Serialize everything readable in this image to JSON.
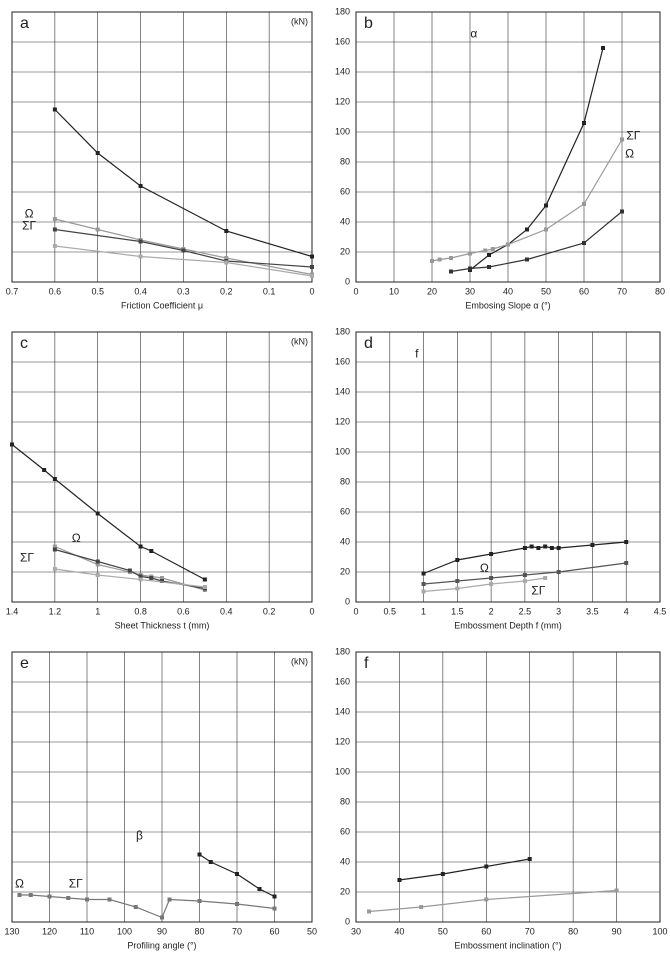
{
  "chart_data": [
    {
      "type": "line",
      "title": "a",
      "unit_label": "(kN)",
      "xlabel": "Friction Coefficient μ",
      "xlim": [
        0.7,
        0
      ],
      "xticks": [
        0.7,
        0.6,
        0.5,
        0.4,
        0.3,
        0.2,
        0.1,
        0
      ],
      "ylim": [
        0,
        180
      ],
      "grid": true,
      "series": [
        {
          "color": "#222222",
          "x": [
            0.6,
            0.5,
            0.4,
            0.2,
            0
          ],
          "values": [
            115,
            86,
            64,
            34,
            17
          ]
        },
        {
          "color": "#999999",
          "x": [
            0.6,
            0.5,
            0.4,
            0.3,
            0.2,
            0
          ],
          "values": [
            42,
            35,
            28,
            22,
            16,
            5
          ]
        },
        {
          "color": "#444444",
          "x": [
            0.6,
            0.4,
            0.3,
            0.2,
            0
          ],
          "values": [
            35,
            27,
            21,
            14,
            10
          ]
        },
        {
          "color": "#aaaaaa",
          "x": [
            0.6,
            0.4,
            0.2,
            0
          ],
          "values": [
            24,
            17,
            13,
            4
          ]
        }
      ],
      "annotations": [
        {
          "text": "Ω",
          "x": 0.66,
          "y": 45
        },
        {
          "text": "ΣΓ",
          "x": 0.66,
          "y": 37
        }
      ]
    },
    {
      "type": "line",
      "title": "b",
      "xlabel": "Embosing Slope α (°)",
      "xlim": [
        0,
        80
      ],
      "xticks": [
        0,
        10,
        20,
        30,
        40,
        50,
        60,
        70,
        80
      ],
      "ylim": [
        0,
        180
      ],
      "yticks": [
        0,
        20,
        40,
        60,
        80,
        100,
        120,
        140,
        160,
        180
      ],
      "grid": true,
      "series": [
        {
          "color": "#222222",
          "x": [
            30,
            35,
            40,
            45,
            50,
            60,
            65
          ],
          "values": [
            8,
            18,
            25,
            35,
            51,
            106,
            156
          ]
        },
        {
          "color": "#999999",
          "x": [
            20,
            22,
            25,
            30,
            34,
            36,
            40,
            50,
            60,
            70
          ],
          "values": [
            14,
            15,
            16,
            19,
            21,
            22,
            25,
            35,
            52,
            95
          ]
        },
        {
          "color": "#333333",
          "x": [
            25,
            30,
            35,
            45,
            60,
            70
          ],
          "values": [
            7,
            9,
            10,
            15,
            26,
            47
          ]
        }
      ],
      "annotations": [
        {
          "text": "α",
          "x": 31,
          "y": 165
        },
        {
          "text": "ΣΓ",
          "x": 73,
          "y": 97
        },
        {
          "text": "Ω",
          "x": 72,
          "y": 85
        }
      ]
    },
    {
      "type": "line",
      "title": "c",
      "unit_label": "(kN)",
      "xlabel": "Sheet Thickness t (mm)",
      "xlim": [
        1.4,
        0
      ],
      "xticks": [
        1.4,
        1.2,
        1,
        0.8,
        0.6,
        0.4,
        0.2,
        0
      ],
      "ylim": [
        0,
        180
      ],
      "grid": true,
      "series": [
        {
          "color": "#222222",
          "x": [
            1.4,
            1.25,
            1.2,
            1.0,
            0.8,
            0.75,
            0.5
          ],
          "values": [
            105,
            88,
            82,
            59,
            37,
            34,
            15
          ]
        },
        {
          "color": "#999999",
          "x": [
            1.2,
            1.0,
            0.85,
            0.8,
            0.75,
            0.7,
            0.5
          ],
          "values": [
            37,
            25,
            20,
            18,
            17,
            16,
            8
          ]
        },
        {
          "color": "#444444",
          "x": [
            1.2,
            1.0,
            0.85,
            0.8,
            0.75,
            0.7,
            0.5
          ],
          "values": [
            35,
            27,
            21,
            17,
            16,
            14,
            9
          ]
        },
        {
          "color": "#aaaaaa",
          "x": [
            1.2,
            1.0,
            0.8,
            0.5
          ],
          "values": [
            22,
            18,
            15,
            10
          ]
        }
      ],
      "annotations": [
        {
          "text": "Ω",
          "x": 1.1,
          "y": 42
        },
        {
          "text": "ΣΓ",
          "x": 1.33,
          "y": 29
        }
      ]
    },
    {
      "type": "line",
      "title": "d",
      "xlabel": "Embossment Depth f (mm)",
      "xlim": [
        0,
        4.5
      ],
      "xticks": [
        0,
        0.5,
        1,
        1.5,
        2,
        2.5,
        3,
        3.5,
        4,
        4.5
      ],
      "ylim": [
        0,
        180
      ],
      "yticks": [
        0,
        20,
        40,
        60,
        80,
        100,
        120,
        140,
        160,
        180
      ],
      "grid": true,
      "series": [
        {
          "color": "#222222",
          "x": [
            1,
            1.5,
            2,
            2.5,
            2.6,
            2.7,
            2.8,
            2.9,
            3,
            3.5,
            4
          ],
          "values": [
            19,
            28,
            32,
            36,
            37,
            36,
            37,
            36,
            36,
            38,
            40
          ]
        },
        {
          "color": "#555555",
          "x": [
            1,
            1.5,
            2,
            2.5,
            3,
            4
          ],
          "values": [
            12,
            14,
            16,
            18,
            20,
            26
          ]
        },
        {
          "color": "#aaaaaa",
          "x": [
            1,
            1.5,
            2,
            2.5,
            2.8
          ],
          "values": [
            7,
            9,
            12,
            14,
            16
          ]
        }
      ],
      "annotations": [
        {
          "text": "f",
          "x": 0.9,
          "y": 165
        },
        {
          "text": "Ω",
          "x": 1.9,
          "y": 22
        },
        {
          "text": "ΣΓ",
          "x": 2.7,
          "y": 7
        }
      ]
    },
    {
      "type": "line",
      "title": "e",
      "unit_label": "(kN)",
      "xlabel": "Profiling angle  (°)",
      "xlim": [
        130,
        50
      ],
      "xticks": [
        130,
        120,
        110,
        100,
        90,
        80,
        70,
        60,
        50
      ],
      "ylim": [
        0,
        180
      ],
      "grid": true,
      "series": [
        {
          "color": "#222222",
          "x": [
            80,
            77,
            70,
            64,
            60
          ],
          "values": [
            45,
            40,
            32,
            22,
            17
          ]
        },
        {
          "color": "#777777",
          "x": [
            128,
            125,
            120,
            115,
            110,
            104,
            97,
            90,
            88,
            80,
            70,
            60
          ],
          "values": [
            18,
            18,
            17,
            16,
            15,
            15,
            10,
            3,
            15,
            14,
            12,
            9
          ]
        }
      ],
      "annotations": [
        {
          "text": "Ω",
          "x": 128,
          "y": 25
        },
        {
          "text": "ΣΓ",
          "x": 113,
          "y": 25
        },
        {
          "text": "β",
          "x": 96,
          "y": 57
        }
      ]
    },
    {
      "type": "line",
      "title": "f",
      "xlabel": "Embossment inclination (°)",
      "xlim": [
        30,
        100
      ],
      "xticks": [
        30,
        40,
        50,
        60,
        70,
        80,
        90,
        100
      ],
      "ylim": [
        0,
        180
      ],
      "yticks": [
        0,
        20,
        40,
        60,
        80,
        100,
        120,
        140,
        160,
        180
      ],
      "grid": true,
      "series": [
        {
          "color": "#222222",
          "x": [
            40,
            50,
            60,
            70
          ],
          "values": [
            28,
            32,
            37,
            42
          ]
        },
        {
          "color": "#999999",
          "x": [
            33,
            45,
            60,
            90
          ],
          "values": [
            7,
            10,
            15,
            21
          ]
        }
      ],
      "annotations": []
    }
  ]
}
